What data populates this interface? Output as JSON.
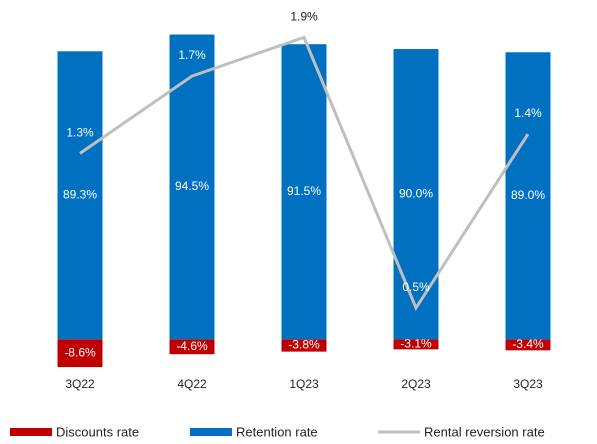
{
  "chart_data": {
    "type": "bar",
    "categories": [
      "3Q22",
      "4Q22",
      "1Q23",
      "2Q23",
      "3Q23"
    ],
    "ylim": [
      -25,
      99
    ],
    "y2lim": [
      -0.08,
      1.99
    ],
    "series": [
      {
        "name": "Discounts rate",
        "color": "#c00000",
        "values": [
          -8.6,
          -4.6,
          -3.8,
          -3.1,
          -3.4
        ],
        "value_labels": [
          "-8.6%",
          "-4.6%",
          "-3.8%",
          "-3.1%",
          "-3.4%"
        ]
      },
      {
        "name": "Retention rate",
        "color": "#0070c0",
        "values": [
          89.3,
          94.5,
          91.5,
          90.0,
          89.0
        ],
        "value_labels": [
          "89.3%",
          "94.5%",
          "91.5%",
          "90.0%",
          "89.0%"
        ]
      },
      {
        "name": "Rental reversion rate",
        "color": "#bfbfbf",
        "type": "line",
        "axis": "y2",
        "values": [
          1.3,
          1.7,
          1.9,
          0.5,
          1.4
        ],
        "value_labels": [
          "1.3%",
          "1.7%",
          "1.9%",
          "0.5%",
          "1.4%"
        ]
      }
    ]
  }
}
